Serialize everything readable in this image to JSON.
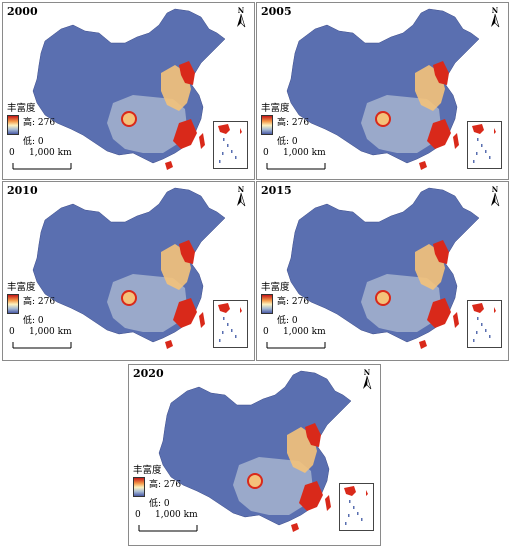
{
  "legend": {
    "title": "丰富度",
    "high_label": "高: 276",
    "low_label": "低: 0",
    "high_color": "#c41818",
    "low_color": "#4a5aa5"
  },
  "scale_bar": {
    "start": "0",
    "end": "1,000 km"
  },
  "north_arrow_label": "N",
  "panels": [
    {
      "year": "2000"
    },
    {
      "year": "2005"
    },
    {
      "year": "2010"
    },
    {
      "year": "2015"
    },
    {
      "year": "2020"
    }
  ],
  "colors": {
    "base": "#5a6fb0",
    "mid": "#a6b4cf",
    "warm": "#f4c27a",
    "hot": "#d9291a",
    "border": "#8a8a8a"
  }
}
